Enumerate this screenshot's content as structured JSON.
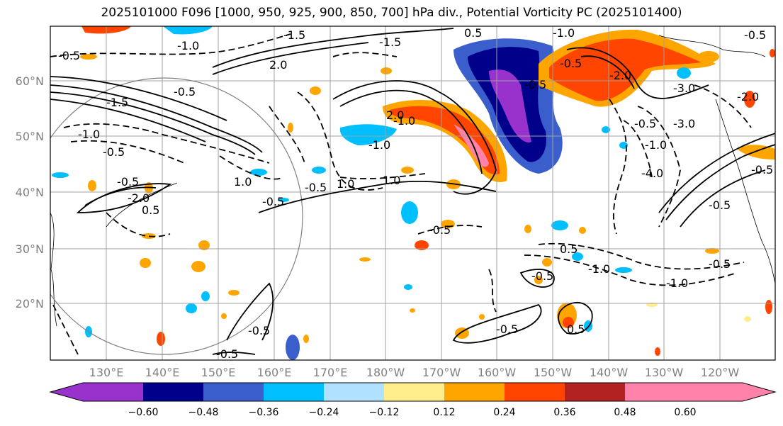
{
  "title": "2025101000 F096 [1000, 950, 925, 900, 850, 700] hPa div., Potential Vorticity PC (2025101400)",
  "lat_labels": [
    "60°N",
    "50°N",
    "40°N",
    "30°N",
    "20°N"
  ],
  "lon_labels": [
    "130°E",
    "140°E",
    "150°E",
    "160°E",
    "170°E",
    "180°W",
    "170°W",
    "160°W",
    "150°W",
    "140°W",
    "130°W",
    "120°W"
  ],
  "colorbar": {
    "colors": [
      "#9932cc",
      "#00008b",
      "#3a5fcd",
      "#00bfff",
      "#b0e2ff",
      "#ffffff",
      "#ffec8b",
      "#ffa500",
      "#ff4500",
      "#b22222",
      "#ff82ab"
    ],
    "tick_labels": [
      "−0.60",
      "−0.48",
      "−0.36",
      "−0.24",
      "−0.12",
      "0.12",
      "0.24",
      "0.36",
      "0.48",
      "0.60"
    ]
  },
  "contour_labels": [
    "0.5",
    "1.0",
    "1.5",
    "2.0",
    "-0.5",
    "-1.0",
    "-1.5",
    "-2.0",
    "-3.0",
    "-4.0"
  ]
}
